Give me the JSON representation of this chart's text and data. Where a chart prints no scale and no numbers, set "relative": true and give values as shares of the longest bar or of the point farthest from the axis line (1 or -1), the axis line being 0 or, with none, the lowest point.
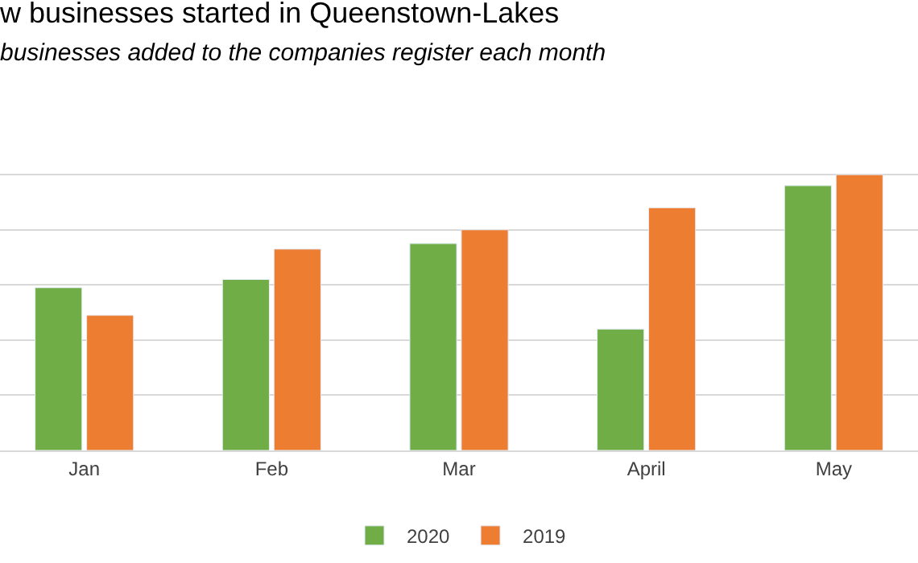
{
  "chart_data": {
    "type": "bar",
    "title": "w businesses started in Queenstown-Lakes",
    "subtitle": "businesses added to the companies register each month",
    "categories": [
      "Jan",
      "Feb",
      "Mar",
      "April",
      "May"
    ],
    "relative": true,
    "grid": "y",
    "legend": "bottom",
    "series": [
      {
        "name": "2020",
        "color": "#70ad47",
        "values": [
          0.59,
          0.62,
          0.75,
          0.44,
          0.96
        ]
      },
      {
        "name": "2019",
        "color": "#ed7d31",
        "values": [
          0.49,
          0.73,
          0.8,
          0.88,
          1
        ]
      }
    ]
  }
}
